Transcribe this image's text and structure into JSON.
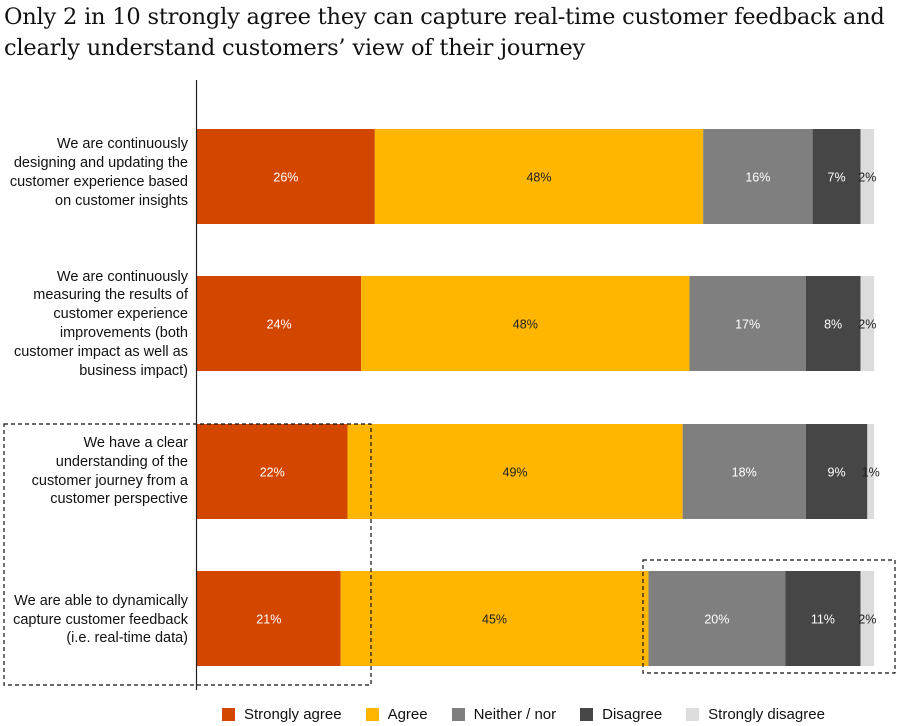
{
  "title": "Only 2 in 10 strongly agree they can capture real-time customer feedback and clearly understand customers’ view of their journey",
  "chart_data": {
    "type": "bar",
    "orientation": "horizontal",
    "stacked": true,
    "categories": [
      "We are continuously designing and updating the customer experience based on customer insights",
      "We are continuously measuring the results of customer experience improvements (both customer impact as well as business impact)",
      "We have a clear understanding of the customer journey from a customer perspective",
      "We are able to dynamically capture customer feedback (i.e. real-time data)"
    ],
    "series": [
      {
        "name": "Strongly agree",
        "color": "#d24600",
        "label_color": "#ffffff",
        "values": [
          26,
          24,
          22,
          21
        ]
      },
      {
        "name": "Agree",
        "color": "#ffb600",
        "label_color": "#222222",
        "values": [
          48,
          48,
          49,
          45
        ]
      },
      {
        "name": "Neither / nor",
        "color": "#7f7f7f",
        "label_color": "#ffffff",
        "values": [
          16,
          17,
          18,
          20
        ]
      },
      {
        "name": "Disagree",
        "color": "#464646",
        "label_color": "#ffffff",
        "values": [
          7,
          8,
          9,
          11
        ]
      },
      {
        "name": "Strongly disagree",
        "color": "#dcdcdc",
        "label_color": "#222222",
        "values": [
          2,
          2,
          1,
          2
        ]
      }
    ],
    "value_suffix": "%",
    "xlim": [
      0,
      100
    ],
    "legend": "bottom",
    "grid": false,
    "highlights": [
      {
        "series": "Strongly agree",
        "categories": [
          2,
          3
        ]
      },
      {
        "series": [
          "Neither / nor",
          "Disagree",
          "Strongly disagree"
        ],
        "categories": [
          3
        ]
      }
    ]
  }
}
